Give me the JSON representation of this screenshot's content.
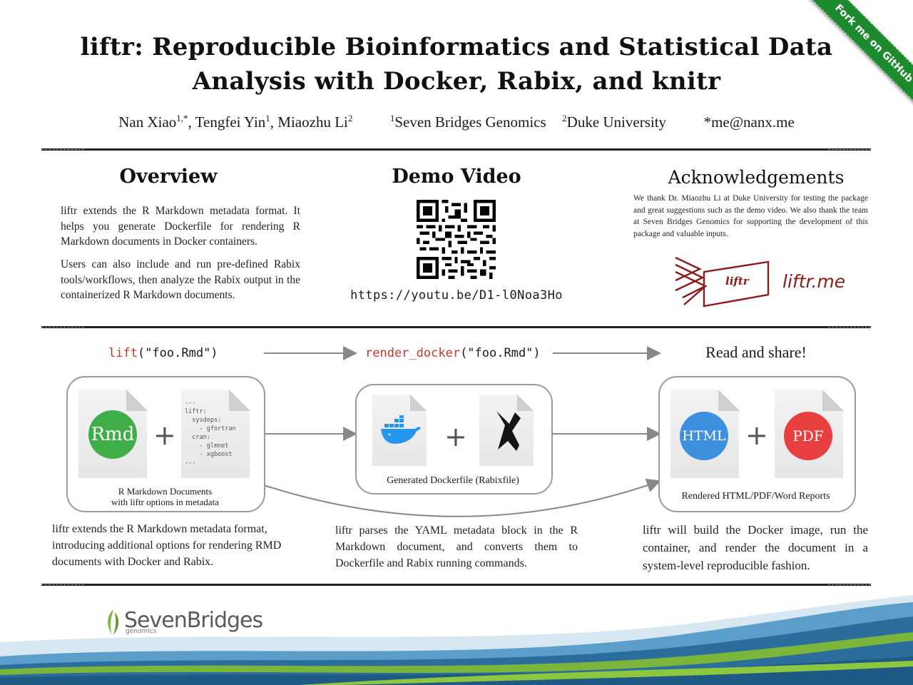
{
  "header": {
    "title_line1": "liftr: Reproducible Bioinformatics and Statistical Data",
    "title_line2": "Analysis with Docker, Rabix, and knitr",
    "authors": [
      {
        "name": "Nan Xiao",
        "sup": "1,*",
        "sep": ", "
      },
      {
        "name": "Tengfei Yin",
        "sup": "1",
        "sep": ", "
      },
      {
        "name": "Miaozhu Li",
        "sup": "2",
        "sep": ""
      }
    ],
    "affiliations": [
      {
        "sup": "1",
        "name": "Seven Bridges Genomics"
      },
      {
        "sup": "2",
        "name": "Duke University"
      }
    ],
    "contact": "*me@nanx.me"
  },
  "ribbon": {
    "label": "Fork me on GitHub",
    "color": "#1e8a2e"
  },
  "overview": {
    "heading": "Overview",
    "paragraphs": [
      "liftr extends the R Markdown metadata format. It helps you generate Dockerfile for rendering R Markdown documents in Docker containers.",
      "Users can also include and run pre-defined Rabix tools/workflows, then analyze the Rabix output in the containerized R Markdown documents."
    ]
  },
  "demo": {
    "heading": "Demo Video",
    "url": "https://youtu.be/D1-l0Noa3Ho"
  },
  "ack": {
    "heading": "Acknowledgements",
    "text": "We thank Dr. Miaozhu Li at Duke University for testing the package and great suggestions such as the demo video. We also thank the team at Seven Bridges Genomics for supporting the development of this package and valuable inputs.",
    "logo_text": "liftr",
    "site": "liftr.me",
    "brand_color": "#8b1a1a"
  },
  "workflow": {
    "step1": {
      "fn": "lift",
      "arg": "(\"foo.Rmd\")"
    },
    "step2": {
      "fn": "render_docker",
      "arg": "(\"foo.Rmd\")"
    },
    "step3_label": "Read and share!",
    "rmd_badge": "Rmd",
    "yaml_block": "---\nliftr:\n  sysdeps:\n    - gfortran\n  cran:\n    - glmnet\n    - xgboost\n---",
    "caption1_line1": "R Markdown Documents",
    "caption1_line2": "with liftr options in metadata",
    "caption2": "Generated Dockerfile  (Rabixfile)",
    "html_badge": "HTML",
    "pdf_badge": "PDF",
    "caption3": "Rendered HTML/PDF/Word Reports",
    "desc1": "liftr extends the R Markdown metadata format, introducing additional options for rendering RMD documents with Docker and Rabix.",
    "desc2": "liftr parses the YAML metadata block in the R Markdown document, and converts them to Dockerfile and Rabix running commands.",
    "desc3": "liftr will build the Docker image, run the container, and render the document in a system-level reproducible fashion."
  },
  "colors": {
    "rmd": "#3fae49",
    "html": "#3d8fe0",
    "pdf": "#e84040",
    "fn_code": "#c0392b",
    "wave_blue": "#2b6e9e",
    "wave_green": "#7bb53a"
  },
  "footer": {
    "logo_text": "SevenBridges",
    "logo_sub": "genomics"
  }
}
